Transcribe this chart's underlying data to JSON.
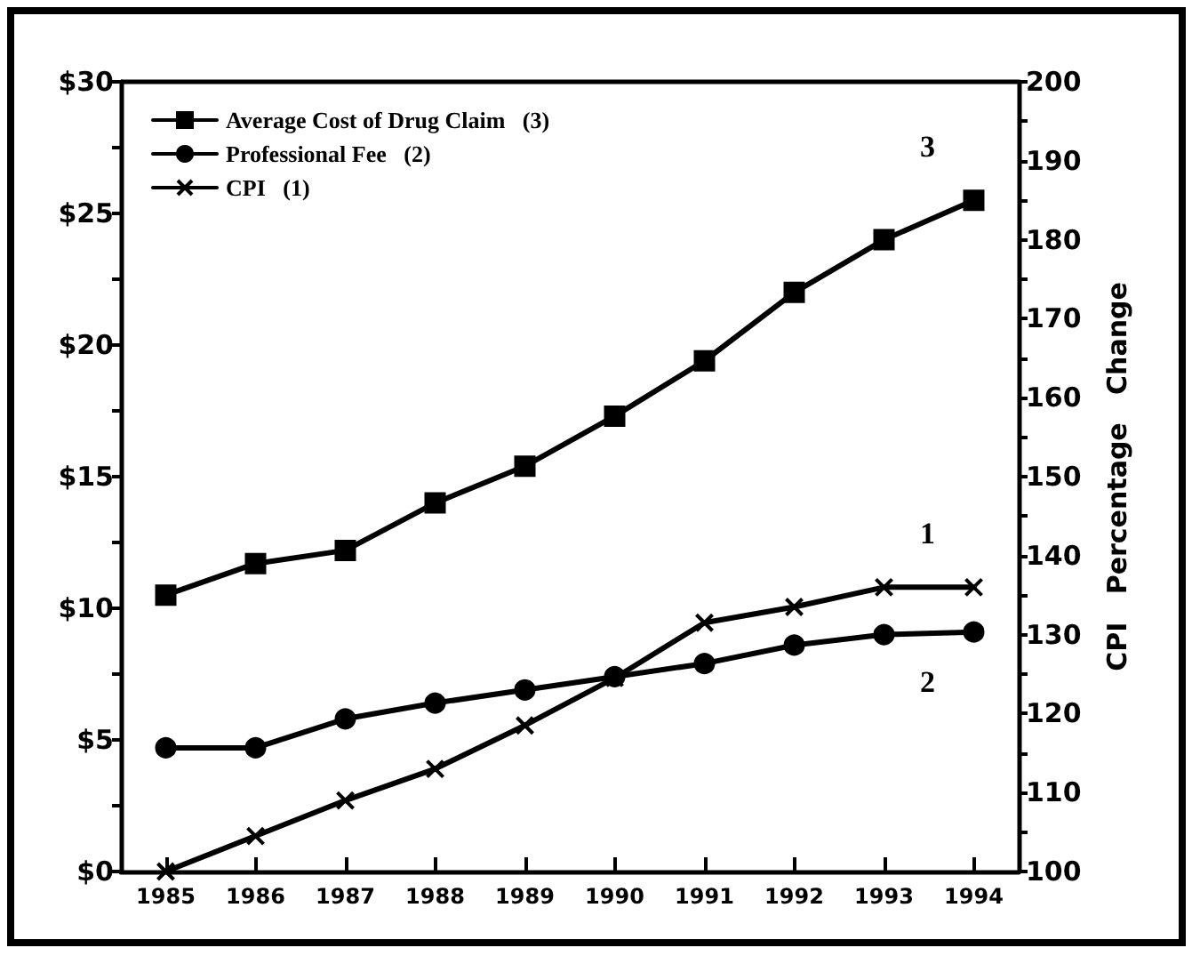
{
  "chart_data": {
    "type": "line",
    "categories": [
      "1985",
      "1986",
      "1987",
      "1988",
      "1989",
      "1990",
      "1991",
      "1992",
      "1993",
      "1994"
    ],
    "series": [
      {
        "name": "Average Cost of Drug Claim   (3)",
        "color": "#000000",
        "marker": "square",
        "values": [
          10.5,
          11.7,
          12.2,
          14.0,
          15.4,
          17.3,
          19.4,
          22.0,
          24.0,
          25.5
        ]
      },
      {
        "name": "Professional Fee   (2)",
        "color": "#000000",
        "marker": "circle",
        "values": [
          4.7,
          4.7,
          5.8,
          6.4,
          6.9,
          7.4,
          7.9,
          8.6,
          9.0,
          9.1
        ]
      },
      {
        "name": "CPI   (1)",
        "color": "#000000",
        "marker": "cross",
        "axis": "y2",
        "values": [
          100,
          104.5,
          109,
          113,
          118.5,
          124.5,
          131.5,
          133.5,
          136,
          136
        ]
      }
    ],
    "ylim": [
      0,
      30
    ],
    "yticks": [
      {
        "value": 0,
        "label": "$0"
      },
      {
        "value": 2.5,
        "label": null
      },
      {
        "value": 5,
        "label": "$5"
      },
      {
        "value": 7.5,
        "label": null
      },
      {
        "value": 10,
        "label": "$10"
      },
      {
        "value": 12.5,
        "label": null
      },
      {
        "value": 15,
        "label": "$15"
      },
      {
        "value": 17.5,
        "label": null
      },
      {
        "value": 20,
        "label": "$20"
      },
      {
        "value": 22.5,
        "label": null
      },
      {
        "value": 25,
        "label": "$25"
      },
      {
        "value": 27.5,
        "label": null
      },
      {
        "value": 30,
        "label": "$30"
      }
    ],
    "y2lim": [
      100,
      200
    ],
    "y2ticks": [
      100,
      {
        "value": 105,
        "label": null
      },
      110,
      {
        "value": 115,
        "label": null
      },
      120,
      {
        "value": 125,
        "label": null
      },
      130,
      {
        "value": 135,
        "label": null
      },
      140,
      {
        "value": 145,
        "label": null
      },
      150,
      {
        "value": 155,
        "label": null
      },
      160,
      {
        "value": 165,
        "label": null
      },
      170,
      {
        "value": 175,
        "label": null
      },
      180,
      {
        "value": 185,
        "label": null
      },
      190,
      {
        "value": 195,
        "label": null
      },
      200
    ],
    "y2label": "CPI   Percentage   Change",
    "annotations": [
      "3",
      "2",
      "1"
    ],
    "legend": "top left",
    "grid": false,
    "line_style": "solid"
  }
}
